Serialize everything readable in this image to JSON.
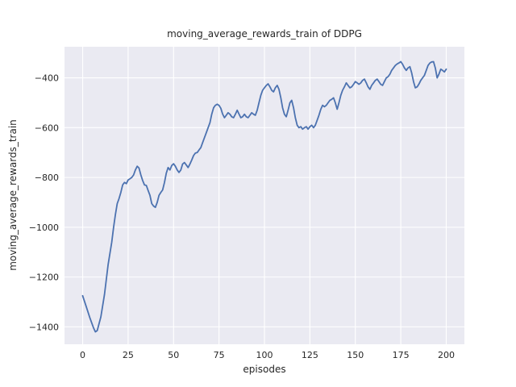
{
  "figure": {
    "background": "#ffffff"
  },
  "chart_data": {
    "type": "line",
    "title": "moving_average_rewards_train of DDPG",
    "xlabel": "episodes",
    "ylabel": "moving_average_rewards_train",
    "xlim": [
      -10,
      210
    ],
    "ylim": [
      -1470,
      -275
    ],
    "xticks": [
      0,
      25,
      50,
      75,
      100,
      125,
      150,
      175,
      200
    ],
    "yticks": [
      -1400,
      -1200,
      -1000,
      -800,
      -600,
      -400
    ],
    "grid": true,
    "plot_bg": "#eaeaf2",
    "grid_color": "#ffffff",
    "line_color": "#4c72b0",
    "text_color": "#262626",
    "points": [
      [
        0,
        -1275
      ],
      [
        2,
        -1320
      ],
      [
        4,
        -1365
      ],
      [
        6,
        -1405
      ],
      [
        7,
        -1420
      ],
      [
        8,
        -1415
      ],
      [
        10,
        -1360
      ],
      [
        12,
        -1270
      ],
      [
        14,
        -1150
      ],
      [
        16,
        -1060
      ],
      [
        17,
        -1000
      ],
      [
        18,
        -950
      ],
      [
        19,
        -905
      ],
      [
        20,
        -885
      ],
      [
        21,
        -860
      ],
      [
        22,
        -830
      ],
      [
        23,
        -820
      ],
      [
        24,
        -825
      ],
      [
        25,
        -810
      ],
      [
        26,
        -805
      ],
      [
        27,
        -800
      ],
      [
        28,
        -790
      ],
      [
        29,
        -770
      ],
      [
        30,
        -755
      ],
      [
        31,
        -762
      ],
      [
        32,
        -790
      ],
      [
        33,
        -812
      ],
      [
        34,
        -830
      ],
      [
        35,
        -832
      ],
      [
        36,
        -852
      ],
      [
        37,
        -872
      ],
      [
        38,
        -905
      ],
      [
        39,
        -915
      ],
      [
        40,
        -920
      ],
      [
        41,
        -900
      ],
      [
        42,
        -872
      ],
      [
        43,
        -860
      ],
      [
        44,
        -850
      ],
      [
        45,
        -820
      ],
      [
        46,
        -782
      ],
      [
        47,
        -760
      ],
      [
        48,
        -770
      ],
      [
        49,
        -752
      ],
      [
        50,
        -745
      ],
      [
        51,
        -755
      ],
      [
        52,
        -770
      ],
      [
        53,
        -780
      ],
      [
        54,
        -770
      ],
      [
        55,
        -746
      ],
      [
        56,
        -740
      ],
      [
        57,
        -750
      ],
      [
        58,
        -760
      ],
      [
        59,
        -746
      ],
      [
        60,
        -730
      ],
      [
        61,
        -712
      ],
      [
        62,
        -702
      ],
      [
        63,
        -700
      ],
      [
        64,
        -690
      ],
      [
        65,
        -680
      ],
      [
        66,
        -660
      ],
      [
        67,
        -640
      ],
      [
        68,
        -620
      ],
      [
        69,
        -600
      ],
      [
        70,
        -580
      ],
      [
        71,
        -546
      ],
      [
        72,
        -520
      ],
      [
        73,
        -510
      ],
      [
        74,
        -506
      ],
      [
        75,
        -510
      ],
      [
        76,
        -522
      ],
      [
        77,
        -545
      ],
      [
        78,
        -560
      ],
      [
        79,
        -550
      ],
      [
        80,
        -540
      ],
      [
        81,
        -546
      ],
      [
        82,
        -556
      ],
      [
        83,
        -560
      ],
      [
        84,
        -546
      ],
      [
        85,
        -530
      ],
      [
        86,
        -545
      ],
      [
        87,
        -560
      ],
      [
        88,
        -556
      ],
      [
        89,
        -546
      ],
      [
        90,
        -556
      ],
      [
        91,
        -560
      ],
      [
        92,
        -550
      ],
      [
        93,
        -540
      ],
      [
        94,
        -546
      ],
      [
        95,
        -550
      ],
      [
        96,
        -530
      ],
      [
        97,
        -500
      ],
      [
        98,
        -470
      ],
      [
        99,
        -450
      ],
      [
        100,
        -440
      ],
      [
        101,
        -430
      ],
      [
        102,
        -424
      ],
      [
        103,
        -436
      ],
      [
        104,
        -450
      ],
      [
        105,
        -456
      ],
      [
        106,
        -440
      ],
      [
        107,
        -430
      ],
      [
        108,
        -446
      ],
      [
        109,
        -480
      ],
      [
        110,
        -520
      ],
      [
        111,
        -546
      ],
      [
        112,
        -556
      ],
      [
        113,
        -530
      ],
      [
        114,
        -500
      ],
      [
        115,
        -490
      ],
      [
        116,
        -520
      ],
      [
        117,
        -560
      ],
      [
        118,
        -590
      ],
      [
        119,
        -600
      ],
      [
        120,
        -596
      ],
      [
        121,
        -606
      ],
      [
        122,
        -600
      ],
      [
        123,
        -596
      ],
      [
        124,
        -606
      ],
      [
        125,
        -596
      ],
      [
        126,
        -590
      ],
      [
        127,
        -600
      ],
      [
        128,
        -590
      ],
      [
        129,
        -570
      ],
      [
        130,
        -550
      ],
      [
        131,
        -526
      ],
      [
        132,
        -510
      ],
      [
        133,
        -516
      ],
      [
        134,
        -510
      ],
      [
        135,
        -500
      ],
      [
        136,
        -490
      ],
      [
        137,
        -486
      ],
      [
        138,
        -480
      ],
      [
        139,
        -500
      ],
      [
        140,
        -526
      ],
      [
        141,
        -500
      ],
      [
        142,
        -470
      ],
      [
        143,
        -450
      ],
      [
        144,
        -436
      ],
      [
        145,
        -420
      ],
      [
        146,
        -430
      ],
      [
        147,
        -440
      ],
      [
        148,
        -436
      ],
      [
        149,
        -426
      ],
      [
        150,
        -415
      ],
      [
        151,
        -420
      ],
      [
        152,
        -426
      ],
      [
        153,
        -420
      ],
      [
        154,
        -410
      ],
      [
        155,
        -405
      ],
      [
        156,
        -420
      ],
      [
        157,
        -436
      ],
      [
        158,
        -446
      ],
      [
        159,
        -430
      ],
      [
        160,
        -420
      ],
      [
        161,
        -410
      ],
      [
        162,
        -405
      ],
      [
        163,
        -415
      ],
      [
        164,
        -426
      ],
      [
        165,
        -430
      ],
      [
        166,
        -415
      ],
      [
        167,
        -400
      ],
      [
        168,
        -395
      ],
      [
        169,
        -385
      ],
      [
        170,
        -370
      ],
      [
        171,
        -360
      ],
      [
        172,
        -350
      ],
      [
        173,
        -344
      ],
      [
        174,
        -340
      ],
      [
        175,
        -335
      ],
      [
        176,
        -345
      ],
      [
        177,
        -360
      ],
      [
        178,
        -370
      ],
      [
        179,
        -360
      ],
      [
        180,
        -355
      ],
      [
        181,
        -380
      ],
      [
        182,
        -415
      ],
      [
        183,
        -440
      ],
      [
        184,
        -436
      ],
      [
        185,
        -425
      ],
      [
        186,
        -410
      ],
      [
        187,
        -400
      ],
      [
        188,
        -390
      ],
      [
        189,
        -370
      ],
      [
        190,
        -350
      ],
      [
        191,
        -340
      ],
      [
        192,
        -336
      ],
      [
        193,
        -335
      ],
      [
        194,
        -360
      ],
      [
        195,
        -400
      ],
      [
        196,
        -385
      ],
      [
        197,
        -365
      ],
      [
        198,
        -370
      ],
      [
        199,
        -376
      ],
      [
        200,
        -365
      ]
    ]
  }
}
